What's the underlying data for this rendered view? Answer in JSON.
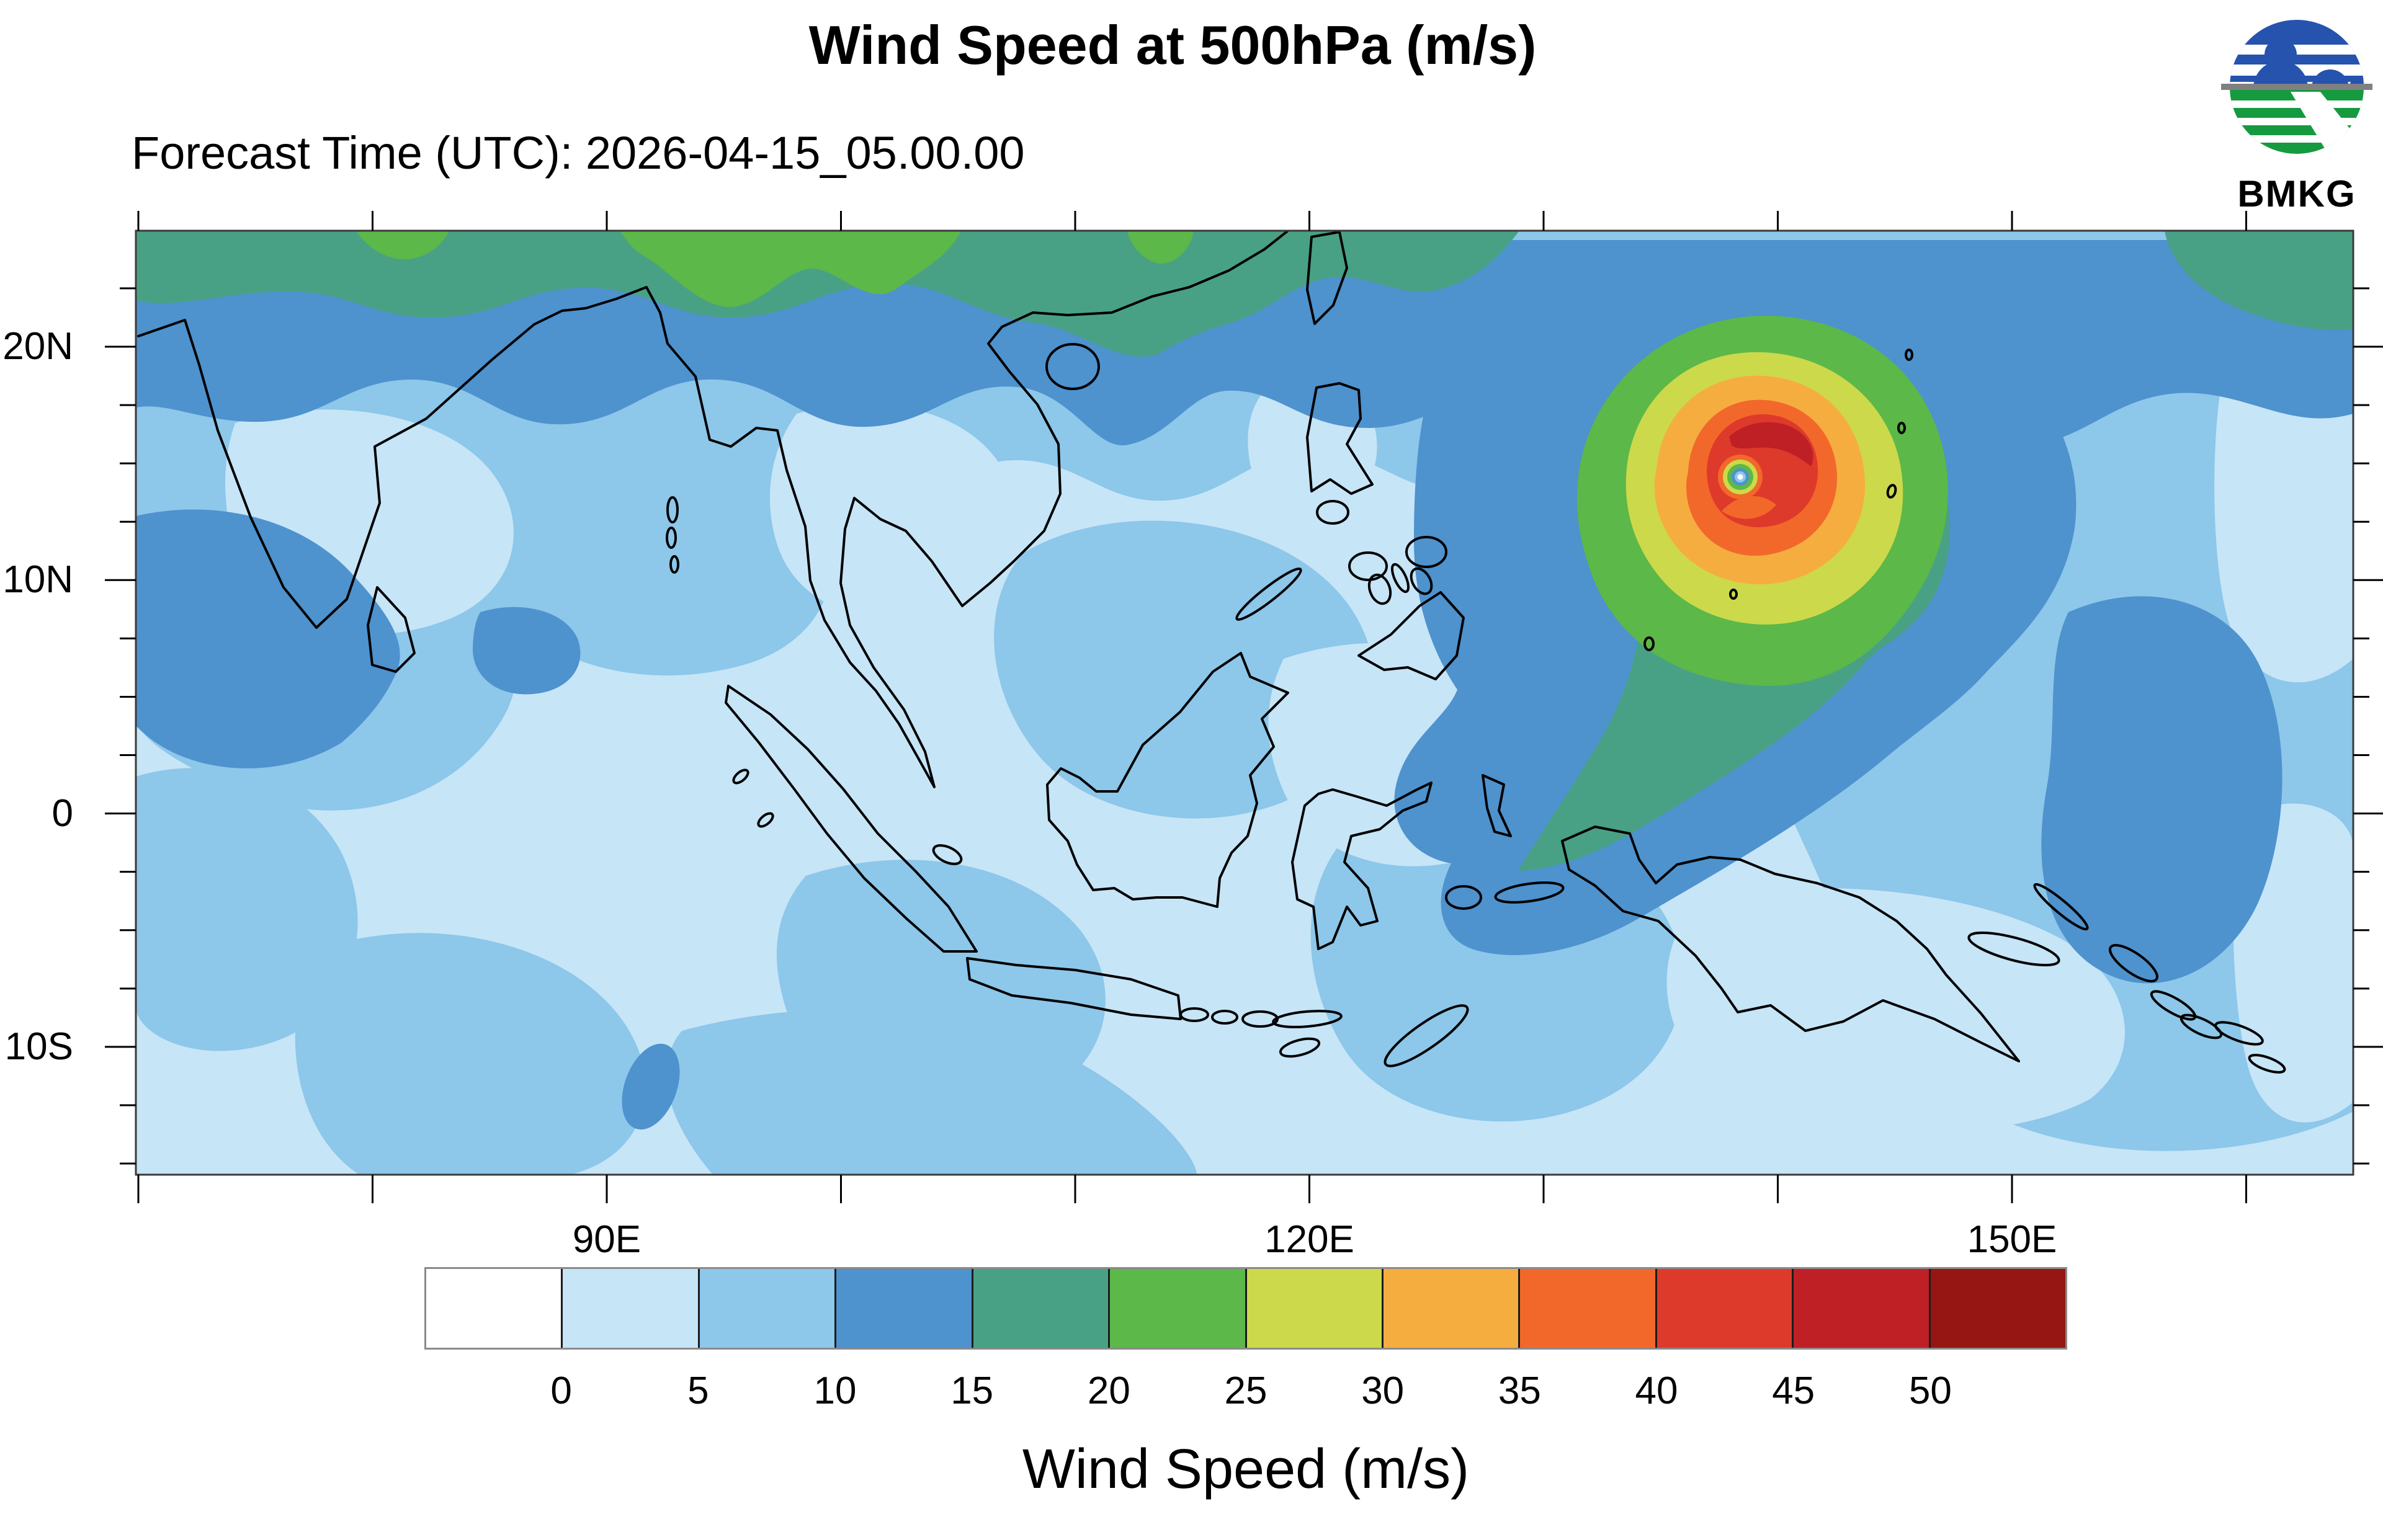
{
  "header": {
    "title": "Wind Speed at 500hPa (m/s)",
    "subtitle": "Forecast Time (UTC): 2026-04-15_05.00.00"
  },
  "logo": {
    "label": "BMKG",
    "blue": "#2553ae",
    "green": "#169a40",
    "gray": "#808080"
  },
  "map": {
    "lat_tick_labels": [
      "20N",
      "10N",
      "0",
      "10S"
    ],
    "lon_tick_labels": [
      "90E",
      "120E",
      "150E"
    ],
    "frame_color": "#3a3a3a",
    "coastline_color": "#000000"
  },
  "colorbar": {
    "title": "Wind Speed (m/s)",
    "tick_labels": [
      "0",
      "5",
      "10",
      "15",
      "20",
      "25",
      "30",
      "35",
      "40",
      "45",
      "50"
    ],
    "colors": [
      "#ffffff",
      "#c6e5f7",
      "#8dc7ea",
      "#4e92ce",
      "#49a185",
      "#5cb848",
      "#ccd94a",
      "#f6ad40",
      "#f2682b",
      "#de3a2b",
      "#bf2026",
      "#951613"
    ]
  },
  "chart_data": {
    "type": "heatmap",
    "title": "Wind Speed at 500hPa (m/s)",
    "forecast_time_utc": "2026-04-15_05.00.00",
    "variable": "Wind Speed",
    "pressure_level": "500hPa",
    "units": "m/s",
    "source": "BMKG",
    "lon_range_deg_east": [
      70,
      164
    ],
    "lat_range_deg_north": [
      -15.5,
      25
    ],
    "lon_tick_labels": [
      "90E",
      "120E",
      "150E"
    ],
    "lat_tick_labels": [
      "20N",
      "10N",
      "0",
      "10S"
    ],
    "contour_levels_ms": [
      0,
      5,
      10,
      15,
      20,
      25,
      30,
      35,
      40,
      45,
      50
    ],
    "palette_hex": [
      "#ffffff",
      "#c6e5f7",
      "#8dc7ea",
      "#4e92ce",
      "#49a185",
      "#5cb848",
      "#ccd94a",
      "#f6ad40",
      "#f2682b",
      "#de3a2b",
      "#bf2026",
      "#951613"
    ],
    "legend_position": "bottom",
    "grid": false,
    "features": [
      {
        "name": "tropical cyclone",
        "approx_lon_e": 138,
        "approx_lat_n": 13.5,
        "max_band_ms": "45-50",
        "note": "concentric rings 15 to 50 m/s around a calm eye (<5 m/s), teal band >15 m/s trailing southwest"
      },
      {
        "name": "northern jet band",
        "approx_lat": "22N-25N full width",
        "band_ms": "15-30",
        "note": "sea-green 15-20 band with green 20-25 patches at top edge"
      },
      {
        "name": "background flow",
        "band_ms": "0-10",
        "note": "most of maritime continent light blue 0-5 with sky-blue 5-10 patches"
      },
      {
        "name": "southeast Pacific maximum",
        "approx_lon_e": 155,
        "approx_lat_n": -5,
        "band_ms": "10-15"
      }
    ]
  }
}
